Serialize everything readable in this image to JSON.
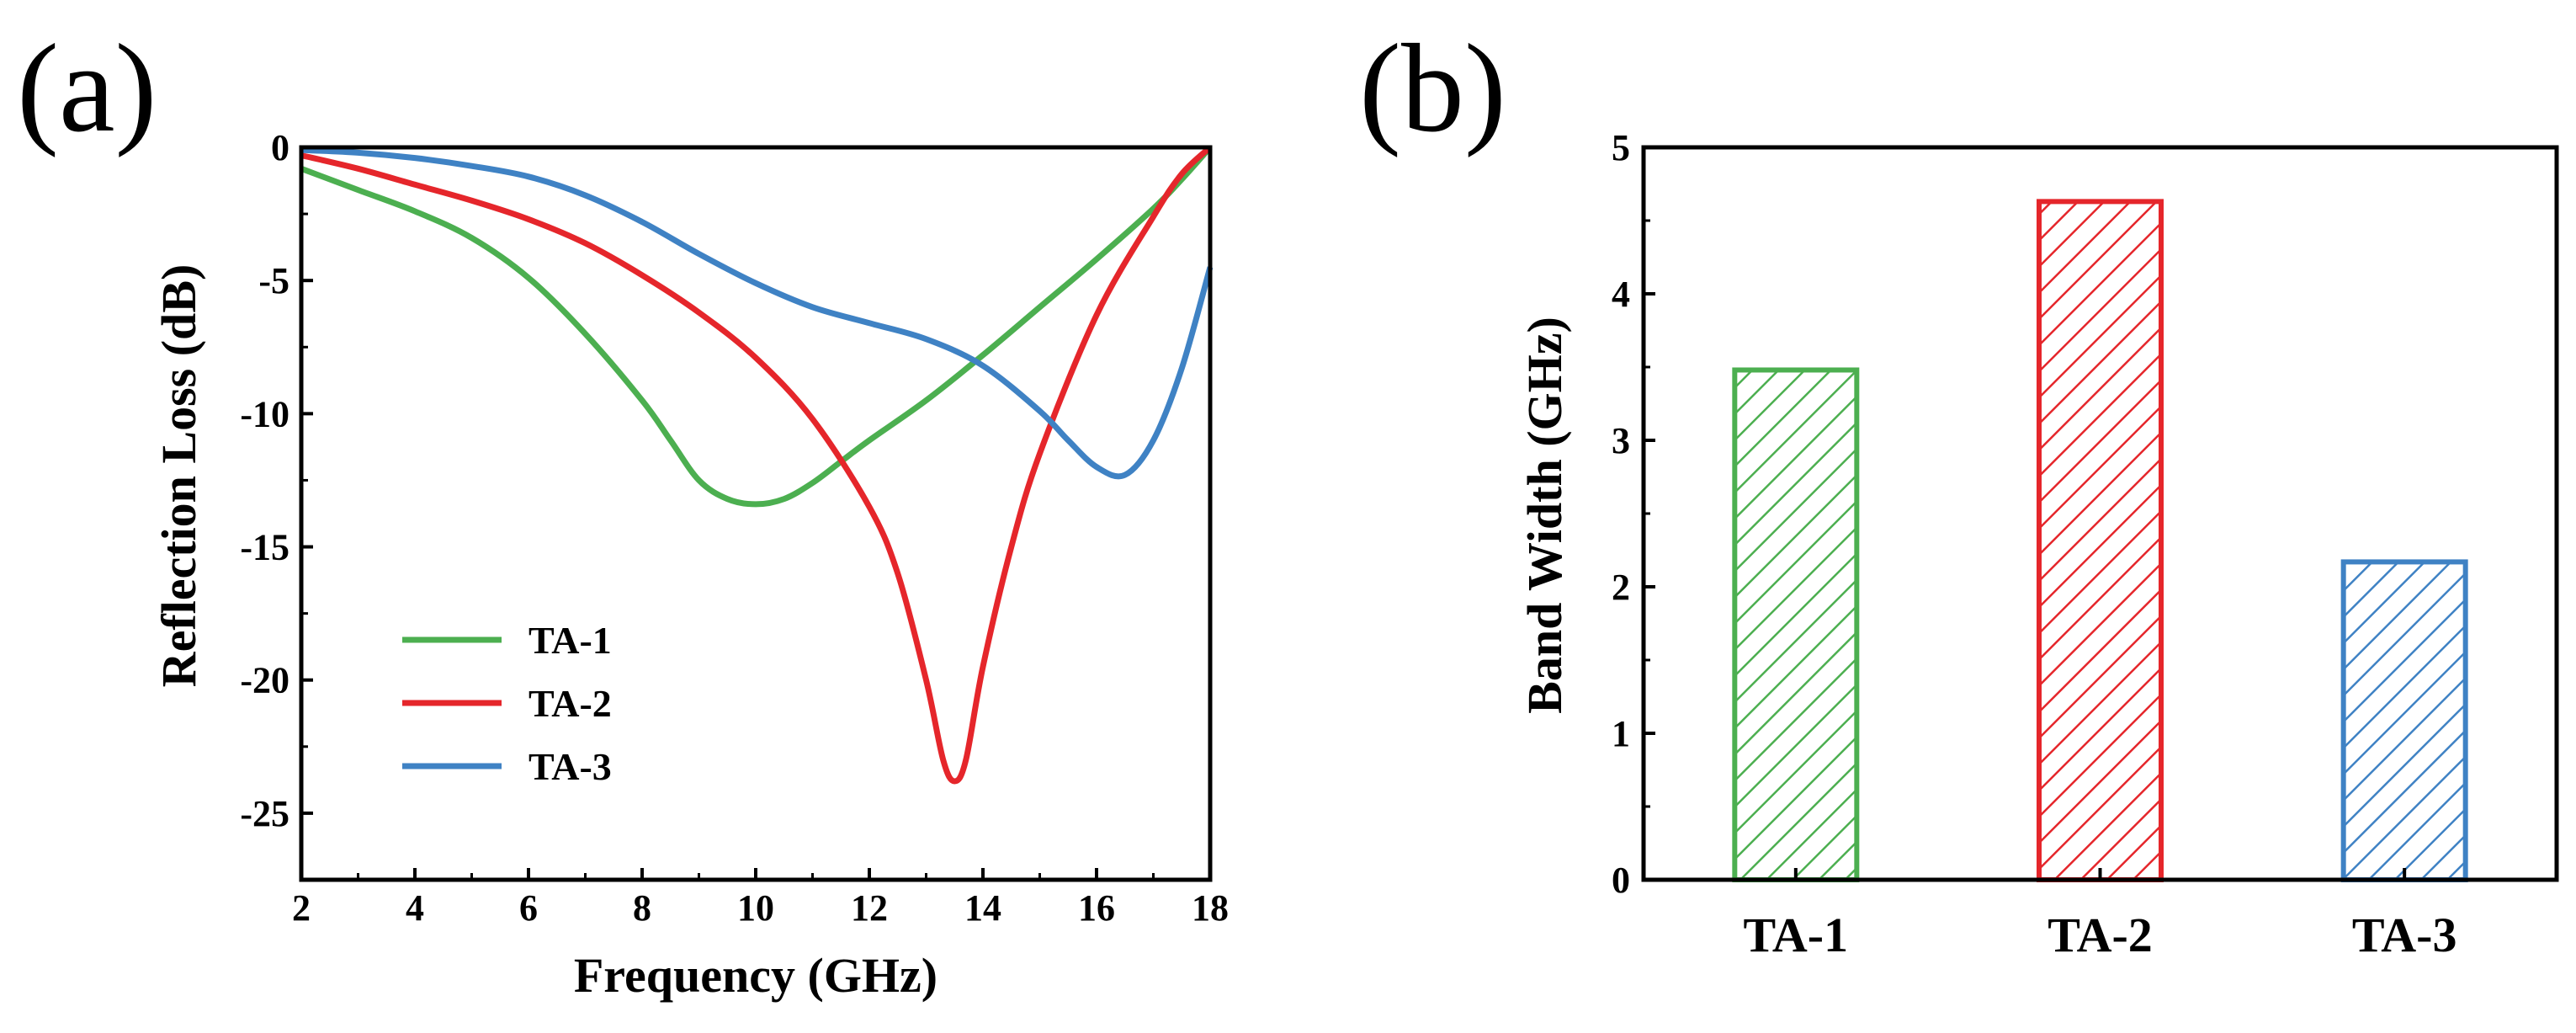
{
  "chart_data": [
    {
      "panel_label": "(a)",
      "type": "line",
      "xlabel": "Frequency (GHz)",
      "ylabel": "Reflection Loss (dB)",
      "xlim": [
        2,
        18
      ],
      "ylim": [
        -27.5,
        0
      ],
      "xticks": [
        "2",
        "4",
        "6",
        "8",
        "10",
        "12",
        "14",
        "16",
        "18"
      ],
      "yticks": [
        "0",
        "-5",
        "-10",
        "-15",
        "-20",
        "-25"
      ],
      "legend_position": "lower-left",
      "series": [
        {
          "name": "TA-1",
          "color": "#4caf50",
          "x": [
            2,
            3,
            4,
            5,
            6,
            7,
            8,
            8.5,
            9,
            9.5,
            10,
            10.5,
            11,
            11.5,
            12,
            13,
            14,
            15,
            16,
            17,
            17.5,
            18
          ],
          "y": [
            -0.8,
            -1.6,
            -2.4,
            -3.4,
            -4.9,
            -7.0,
            -9.5,
            -11.0,
            -12.5,
            -13.2,
            -13.4,
            -13.2,
            -12.6,
            -11.8,
            -11.0,
            -9.5,
            -7.8,
            -6.0,
            -4.2,
            -2.3,
            -1.2,
            0
          ]
        },
        {
          "name": "TA-2",
          "color": "#e5262b",
          "x": [
            2,
            3,
            4,
            5,
            6,
            7,
            8,
            9,
            10,
            11,
            12,
            12.5,
            13,
            13.3,
            13.5,
            13.7,
            14,
            14.5,
            15,
            16,
            17,
            17.5,
            18
          ],
          "y": [
            -0.3,
            -0.8,
            -1.4,
            -2.0,
            -2.7,
            -3.6,
            -4.8,
            -6.2,
            -7.9,
            -10.2,
            -13.5,
            -16.0,
            -20.0,
            -23.0,
            -23.8,
            -23.0,
            -19.5,
            -15.0,
            -11.5,
            -6.3,
            -2.6,
            -1.0,
            0
          ]
        },
        {
          "name": "TA-3",
          "color": "#3f82c4",
          "x": [
            2,
            3,
            4,
            5,
            6,
            7,
            8,
            9,
            10,
            11,
            12,
            13,
            14,
            15,
            15.5,
            16,
            16.5,
            17,
            17.5,
            18
          ],
          "y": [
            -0.1,
            -0.2,
            -0.4,
            -0.7,
            -1.1,
            -1.8,
            -2.8,
            -4.0,
            -5.1,
            -6.0,
            -6.6,
            -7.2,
            -8.2,
            -9.9,
            -11.0,
            -12.0,
            -12.3,
            -11.0,
            -8.3,
            -4.5
          ]
        }
      ]
    },
    {
      "panel_label": "(b)",
      "type": "bar",
      "xlabel": "",
      "ylabel": "Band Width (GHz)",
      "ylim": [
        0,
        5
      ],
      "yticks": [
        "0",
        "1",
        "2",
        "3",
        "4",
        "5"
      ],
      "categories": [
        "TA-1",
        "TA-2",
        "TA-3"
      ],
      "values": [
        3.48,
        4.63,
        2.17
      ],
      "colors": [
        "#4caf50",
        "#e5262b",
        "#3f82c4"
      ],
      "hatch": "diagonal"
    }
  ]
}
